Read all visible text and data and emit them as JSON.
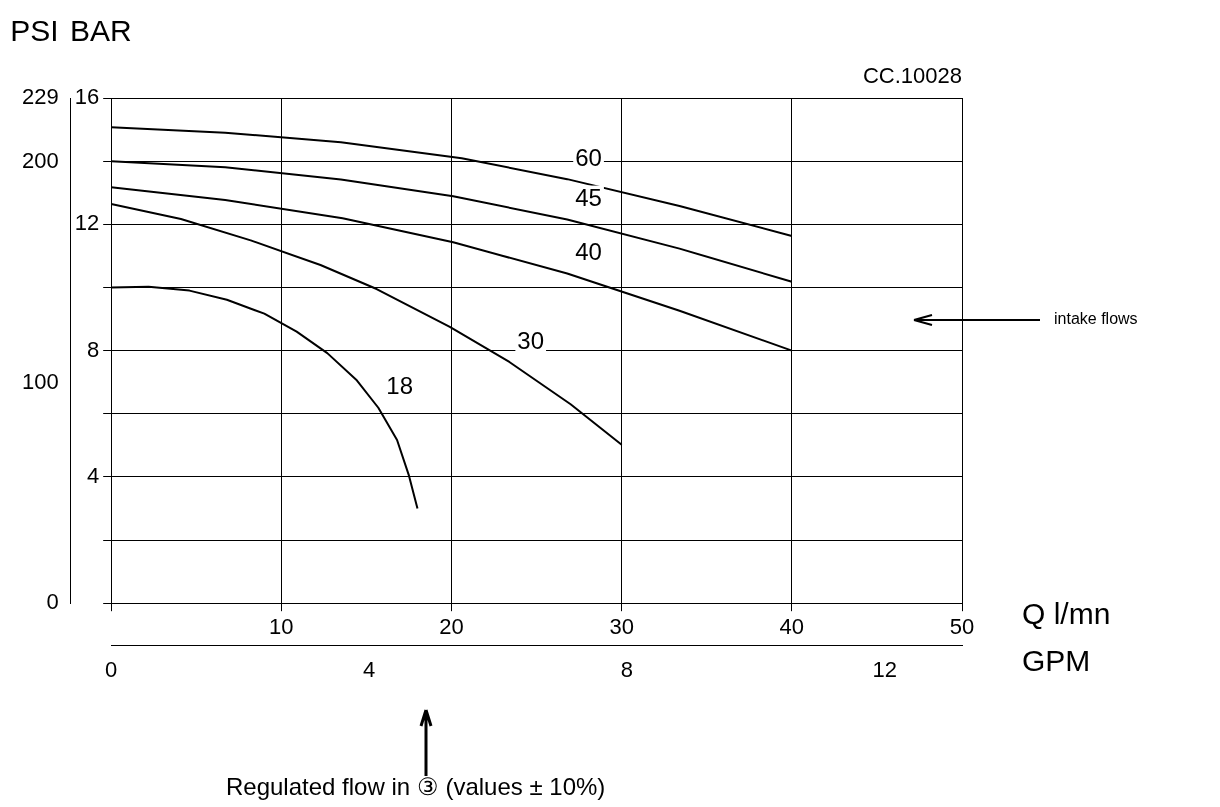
{
  "chart_data": {
    "type": "line",
    "ylabel": "BAR",
    "y2label": "PSI",
    "xlabel": "Q l/mn",
    "x2label": "GPM",
    "annotations": [
      "CC.10028",
      "intake flows",
      "Regulated flow in ③ (values ± 10%)"
    ],
    "xlim": [
      0,
      50
    ],
    "xticks": [
      {
        "value": 0,
        "label": null
      },
      10,
      20,
      30,
      40,
      50
    ],
    "x2lim": [
      0,
      13.2
    ],
    "x2ticks": [
      0,
      4,
      8,
      12
    ],
    "ylim": [
      0,
      16
    ],
    "yticks": [
      {
        "value": 0,
        "label": null
      },
      {
        "value": 2,
        "label": null
      },
      4,
      {
        "value": 6,
        "label": null
      },
      8,
      {
        "value": 10,
        "label": null
      },
      12,
      {
        "value": 14,
        "label": null
      },
      16
    ],
    "y2lim": [
      0,
      229
    ],
    "y2ticks": [
      0,
      100,
      200,
      229
    ],
    "grid": true,
    "legend": false,
    "marker": "none",
    "line_style": "solid",
    "series": [
      {
        "name": "60",
        "color": "#000000",
        "x": [
          0,
          6.7,
          13.5,
          20.6,
          26.8,
          33.4,
          40
        ],
        "values": [
          15.07,
          14.9,
          14.6,
          14.09,
          13.43,
          12.58,
          11.63
        ]
      },
      {
        "name": "45",
        "color": "#000000",
        "x": [
          0,
          6.7,
          13.5,
          20.1,
          26.8,
          33.4,
          40
        ],
        "values": [
          14.0,
          13.81,
          13.42,
          12.89,
          12.15,
          11.23,
          10.18
        ]
      },
      {
        "name": "40",
        "color": "#000000",
        "x": [
          0,
          6.7,
          13.6,
          20.1,
          26.8,
          33.4,
          40
        ],
        "values": [
          13.17,
          12.77,
          12.19,
          11.43,
          10.44,
          9.26,
          8.0
        ]
      },
      {
        "name": "30",
        "color": "#000000",
        "x": [
          0,
          4.1,
          8.2,
          12.3,
          15.6,
          19.9,
          23.4,
          27.0,
          30.0
        ],
        "values": [
          12.64,
          12.17,
          11.49,
          10.71,
          9.95,
          8.75,
          7.64,
          6.3,
          5.02
        ]
      },
      {
        "name": "18",
        "color": "#000000",
        "x": [
          0,
          2.2,
          4.6,
          6.8,
          9.0,
          10.9,
          12.7,
          14.4,
          15.7,
          16.8,
          17.5,
          18.0
        ],
        "values": [
          10.0,
          10.02,
          9.9,
          9.61,
          9.17,
          8.6,
          7.92,
          7.08,
          6.19,
          5.17,
          4.04,
          3.0
        ]
      }
    ]
  }
}
